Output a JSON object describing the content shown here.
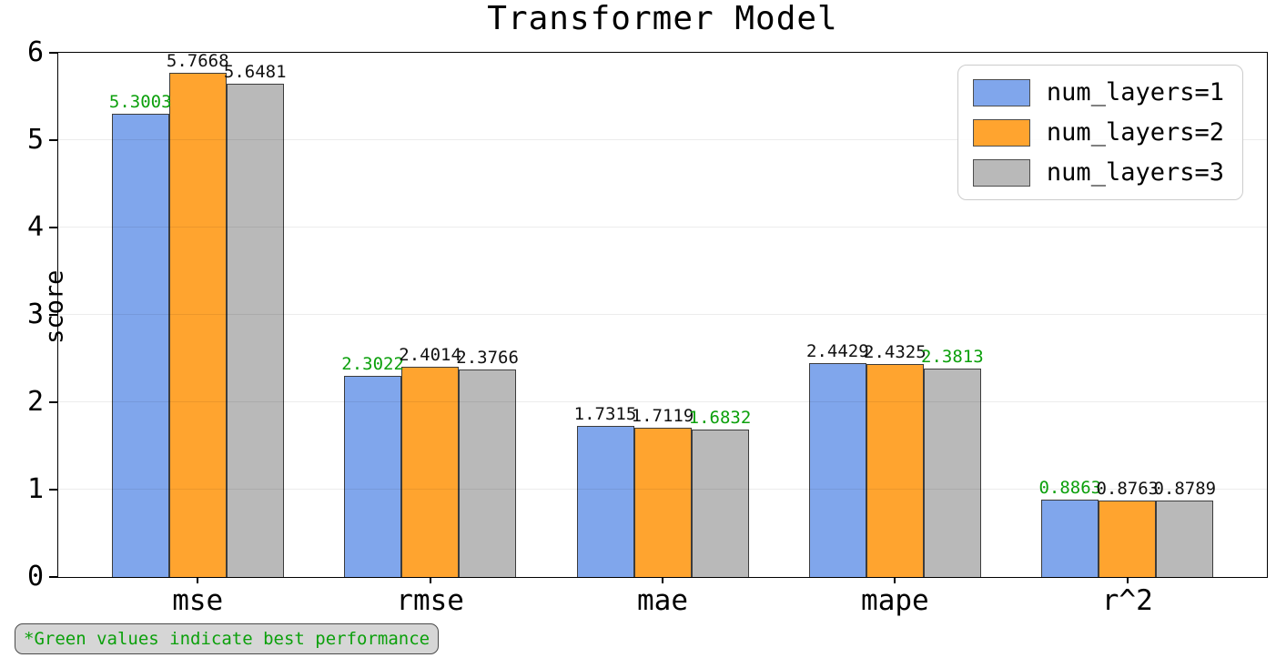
{
  "note": {
    "text": "*Green values indicate best performance"
  },
  "colors": {
    "best_value_green": "#0ca00c",
    "default_value_label": "#111111",
    "bar_edge": "#3c3c3c",
    "series_blue": "#80a6ec",
    "series_orange": "#ffa42f",
    "series_gray": "#b9b9b9"
  },
  "chart_data": {
    "type": "bar",
    "title": "Transformer Model",
    "xlabel": "",
    "ylabel": "score",
    "categories": [
      "mse",
      "rmse",
      "mae",
      "mape",
      "r^2"
    ],
    "series": [
      {
        "name": "num_layers=1",
        "color": "#80a6ec",
        "values": [
          5.3003,
          2.3022,
          1.7315,
          2.4429,
          0.8863
        ]
      },
      {
        "name": "num_layers=2",
        "color": "#ffa42f",
        "values": [
          5.7668,
          2.4014,
          1.7119,
          2.4325,
          0.8763
        ]
      },
      {
        "name": "num_layers=3",
        "color": "#b9b9b9",
        "values": [
          5.6481,
          2.3766,
          1.6832,
          2.3813,
          0.8789
        ]
      }
    ],
    "value_label_decimals": 4,
    "best_index_per_category": [
      0,
      0,
      2,
      2,
      0
    ],
    "ylim": [
      0,
      6
    ],
    "yticks": [
      0,
      1,
      2,
      3,
      4,
      5,
      6
    ],
    "grid": true,
    "legend_position": "upper right",
    "annotation": "*Green values indicate best performance"
  }
}
